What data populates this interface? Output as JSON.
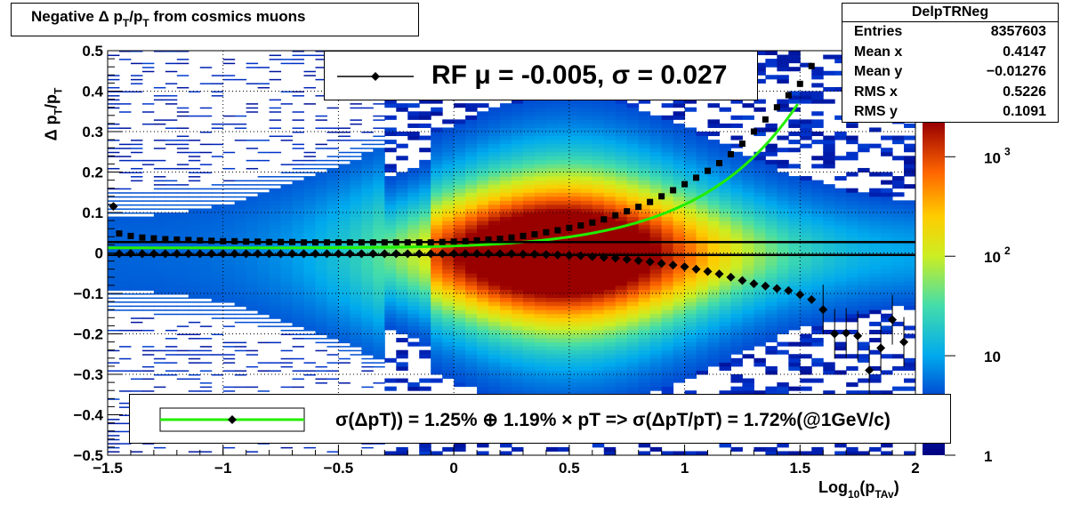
{
  "title": "Negative Δ p",
  "title_sub1": "T",
  "title_mid": "/p",
  "title_sub2": "T",
  "title_end": " from cosmics muons",
  "stats": {
    "name": "DelpTRNeg",
    "rows": [
      {
        "label": "Entries",
        "value": "8357603"
      },
      {
        "label": "Mean x",
        "value": "0.4147"
      },
      {
        "label": "Mean y",
        "value": "−0.01276"
      },
      {
        "label": "RMS x",
        "value": "0.5226"
      },
      {
        "label": "RMS y",
        "value": "0.1091"
      }
    ]
  },
  "legend_top": "RF μ = -0.005, σ =   0.027",
  "legend_bottom": "σ(ΔpT)) =  1.25% ⊕  1.19% × pT => σ(ΔpT/pT) =  1.72%(@1GeV/c)",
  "xlabel": {
    "main": "Log",
    "sub": "10",
    "mid": "(p",
    "sub2": "TAv",
    "end": ")"
  },
  "ylabel": "Δ p_T/p_T",
  "colors": {
    "fit_line": "#22ee00",
    "marker": "#000000"
  },
  "chart_data": {
    "type": "heatmap",
    "xlim": [
      -1.5,
      2.0
    ],
    "ylim": [
      -0.5,
      0.5
    ],
    "x_ticks": [
      "−1.5",
      "−1",
      "−0.5",
      "0",
      "0.5",
      "1",
      "1.5",
      "2"
    ],
    "x_tick_values": [
      -1.5,
      -1.0,
      -0.5,
      0.0,
      0.5,
      1.0,
      1.5,
      2.0
    ],
    "y_ticks": [
      "−0.5",
      "−0.4",
      "−0.3",
      "−0.2",
      "−0.1",
      "0",
      "0.1",
      "0.2",
      "0.3",
      "0.4",
      "0.5"
    ],
    "y_tick_values": [
      -0.5,
      -0.4,
      -0.3,
      -0.2,
      -0.1,
      0.0,
      0.1,
      0.2,
      0.3,
      0.4,
      0.5
    ],
    "z_scale": "log",
    "z_ticks": [
      "1",
      "10",
      "10",
      "10"
    ],
    "z_tick_exps": [
      "",
      "",
      "2",
      "3"
    ],
    "z_tick_values": [
      1,
      10,
      100,
      1000
    ],
    "grid": true,
    "series": [
      {
        "name": "sigma",
        "marker": "square",
        "x": [
          -1.45,
          -1.4,
          -1.35,
          -1.3,
          -1.25,
          -1.2,
          -1.15,
          -1.1,
          -1.05,
          -1.0,
          -0.95,
          -0.9,
          -0.85,
          -0.8,
          -0.75,
          -0.7,
          -0.65,
          -0.6,
          -0.55,
          -0.5,
          -0.45,
          -0.4,
          -0.35,
          -0.3,
          -0.25,
          -0.2,
          -0.15,
          -0.1,
          -0.05,
          0.0,
          0.05,
          0.1,
          0.15,
          0.2,
          0.25,
          0.3,
          0.35,
          0.4,
          0.45,
          0.5,
          0.55,
          0.6,
          0.65,
          0.7,
          0.75,
          0.8,
          0.85,
          0.9,
          0.95,
          1.0,
          1.05,
          1.1,
          1.15,
          1.2,
          1.25,
          1.3,
          1.35,
          1.4,
          1.45,
          1.5,
          1.55
        ],
        "y": [
          0.048,
          0.042,
          0.038,
          0.036,
          0.034,
          0.033,
          0.032,
          0.031,
          0.03,
          0.029,
          0.029,
          0.028,
          0.028,
          0.027,
          0.027,
          0.027,
          0.026,
          0.026,
          0.026,
          0.026,
          0.026,
          0.026,
          0.026,
          0.026,
          0.026,
          0.026,
          0.026,
          0.026,
          0.027,
          0.028,
          0.029,
          0.031,
          0.033,
          0.035,
          0.038,
          0.042,
          0.046,
          0.051,
          0.056,
          0.062,
          0.068,
          0.075,
          0.083,
          0.093,
          0.103,
          0.114,
          0.126,
          0.14,
          0.155,
          0.17,
          0.186,
          0.203,
          0.222,
          0.244,
          0.27,
          0.3,
          0.33,
          0.36,
          0.39,
          0.418,
          0.462
        ]
      },
      {
        "name": "mean",
        "marker": "diamond",
        "x": [
          -1.475,
          -1.45,
          -1.4,
          -1.35,
          -1.3,
          -1.25,
          -1.2,
          -1.15,
          -1.1,
          -1.05,
          -1.0,
          -0.95,
          -0.9,
          -0.85,
          -0.8,
          -0.75,
          -0.7,
          -0.65,
          -0.6,
          -0.55,
          -0.5,
          -0.45,
          -0.4,
          -0.35,
          -0.3,
          -0.25,
          -0.2,
          -0.15,
          -0.1,
          -0.05,
          0.0,
          0.05,
          0.1,
          0.15,
          0.2,
          0.25,
          0.3,
          0.35,
          0.4,
          0.45,
          0.5,
          0.55,
          0.6,
          0.65,
          0.7,
          0.75,
          0.8,
          0.85,
          0.9,
          0.95,
          1.0,
          1.05,
          1.1,
          1.15,
          1.2,
          1.25,
          1.3,
          1.35,
          1.4,
          1.45,
          1.5,
          1.55,
          1.6,
          1.65,
          1.7,
          1.75,
          1.8,
          1.85,
          1.9,
          1.95
        ],
        "y": [
          0.115,
          -0.002,
          -0.001,
          -0.002,
          -0.002,
          -0.002,
          -0.002,
          -0.002,
          -0.002,
          -0.002,
          -0.002,
          -0.002,
          -0.002,
          -0.002,
          -0.002,
          -0.002,
          -0.002,
          -0.002,
          -0.002,
          -0.002,
          -0.002,
          -0.002,
          -0.002,
          -0.002,
          -0.002,
          -0.002,
          -0.002,
          -0.002,
          -0.002,
          -0.002,
          -0.002,
          -0.002,
          -0.002,
          -0.002,
          -0.002,
          -0.002,
          -0.003,
          -0.003,
          -0.004,
          -0.005,
          -0.006,
          -0.007,
          -0.009,
          -0.011,
          -0.013,
          -0.016,
          -0.019,
          -0.022,
          -0.026,
          -0.03,
          -0.034,
          -0.04,
          -0.046,
          -0.052,
          -0.06,
          -0.068,
          -0.076,
          -0.082,
          -0.088,
          -0.093,
          -0.103,
          -0.115,
          -0.14,
          -0.2,
          -0.198,
          -0.205,
          -0.29,
          -0.235,
          -0.165,
          -0.22
        ]
      }
    ],
    "fit": {
      "c0": 0.0125,
      "c1": 0.0119
    }
  }
}
